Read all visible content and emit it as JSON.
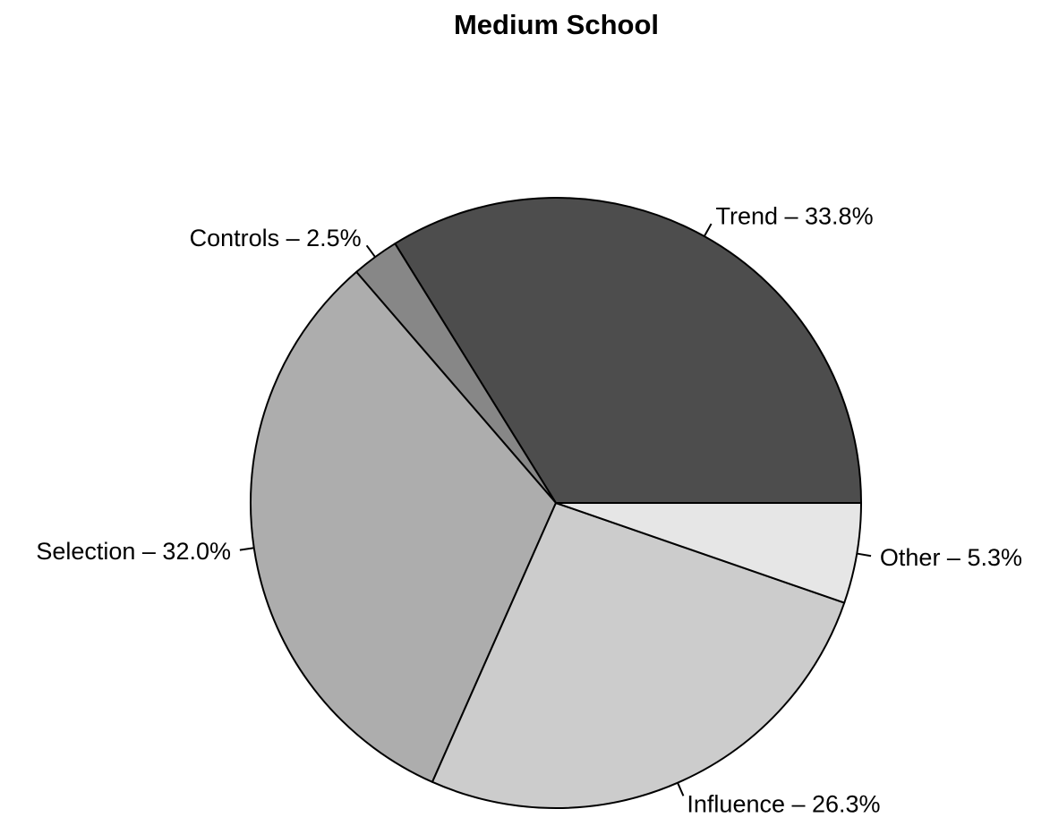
{
  "chart_data": {
    "type": "pie",
    "title": "Medium School",
    "direction": "counterclockwise",
    "start_angle_deg": 0,
    "slices": [
      {
        "label": "Trend",
        "value": 33.8,
        "display": "Trend – 33.8%",
        "color": "#4d4d4d"
      },
      {
        "label": "Controls",
        "value": 2.5,
        "display": "Controls – 2.5%",
        "color": "#878787"
      },
      {
        "label": "Selection",
        "value": 32.0,
        "display": "Selection – 32.0%",
        "color": "#adadad"
      },
      {
        "label": "Influence",
        "value": 26.3,
        "display": "Influence – 26.3%",
        "color": "#cccccc"
      },
      {
        "label": "Other",
        "value": 5.3,
        "display": "Other – 5.3%",
        "color": "#e6e6e6"
      }
    ]
  }
}
